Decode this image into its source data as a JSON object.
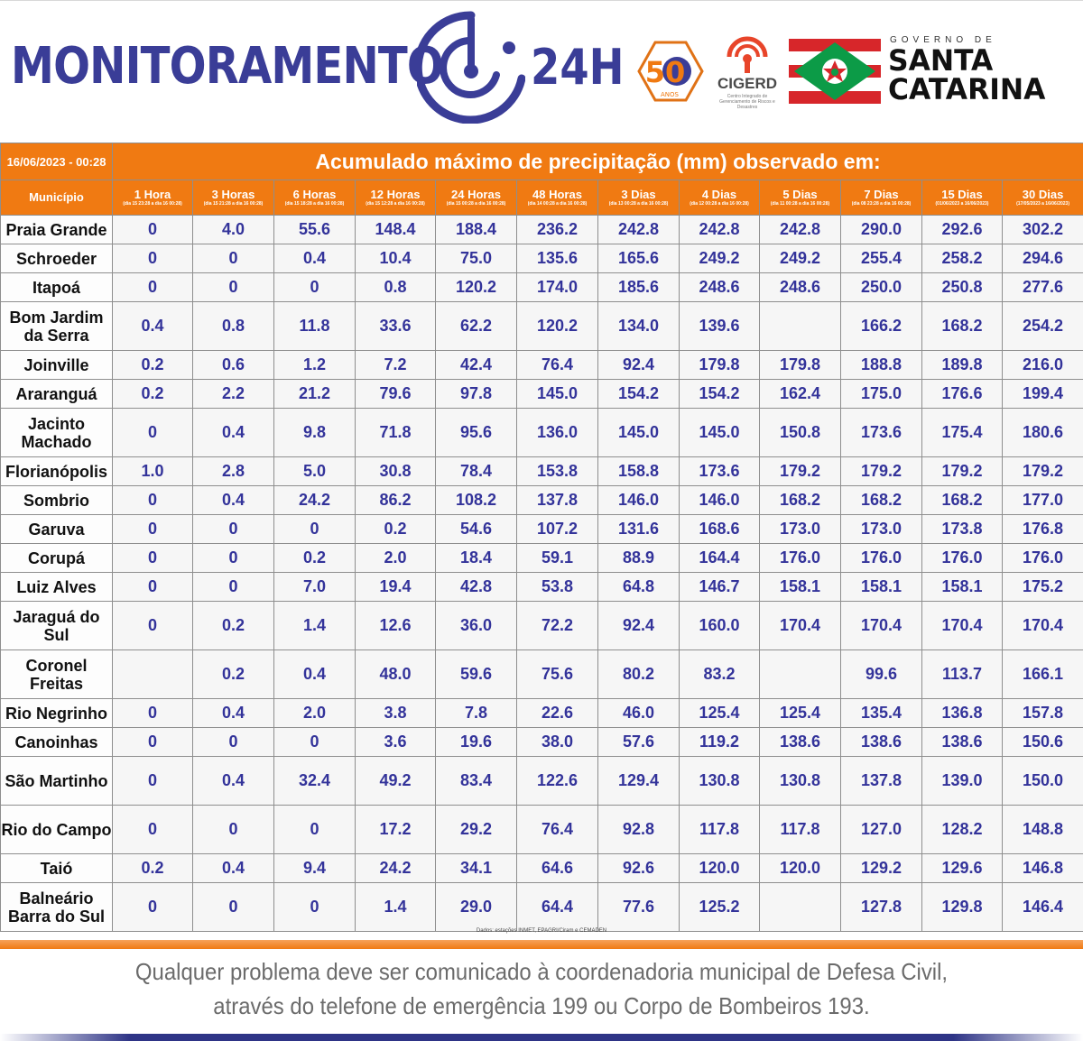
{
  "header": {
    "brand_left": "MONITORAMENTO",
    "brand_right": "24H",
    "anniversary_number": "50",
    "anniversary_word": "ANOS",
    "cigerd_name": "CIGERD",
    "cigerd_subtitle": "Centro Integrado de Gerenciamento de Riscos e Desastres",
    "gov_label": "GOVERNO DE",
    "state_line1": "SANTA",
    "state_line2": "CATARINA",
    "colors": {
      "brand_blue": "#3a3d97",
      "flag_red": "#d7262a",
      "flag_green": "#0c9b47",
      "accent_orange": "#f07a12"
    }
  },
  "table": {
    "date": "16/06/2023 - 00:28",
    "title": "Acumulado máximo de precipitação (mm) observado em:",
    "municipio_label": "Município",
    "periods": [
      {
        "label": "1 Hora",
        "range": "(dia 15 23:28 a dia 16 00:28)"
      },
      {
        "label": "3 Horas",
        "range": "(dia 15 21:28 a dia 16 00:28)"
      },
      {
        "label": "6 Horas",
        "range": "(dia 15 18:28 a dia 16 00:28)"
      },
      {
        "label": "12 Horas",
        "range": "(dia 15 12:28 a dia 16 00:28)"
      },
      {
        "label": "24 Horas",
        "range": "(dia 15 00:28 a dia 16 00:28)"
      },
      {
        "label": "48 Horas",
        "range": "(dia 14 00:28 a dia 16 00:28)"
      },
      {
        "label": "3 Dias",
        "range": "(dia 13 00:28 a dia 16 00:28)"
      },
      {
        "label": "4 Dias",
        "range": "(dia 12 00:28 a dia 16 00:28)"
      },
      {
        "label": "5 Dias",
        "range": "(dia 11 00:28 a dia 16 00:28)"
      },
      {
        "label": "7 Dias",
        "range": "(dia 08 23:28 a dia 16 00:28)"
      },
      {
        "label": "15 Dias",
        "range": "(01/06/2023 a 16/06/2023)"
      },
      {
        "label": "30 Dias",
        "range": "(17/05/2023 a 16/06/2023)"
      }
    ],
    "rows": [
      {
        "name": "Praia Grande",
        "values": [
          "0",
          "4.0",
          "55.6",
          "148.4",
          "188.4",
          "236.2",
          "242.8",
          "242.8",
          "242.8",
          "290.0",
          "292.6",
          "302.2"
        ]
      },
      {
        "name": "Schroeder",
        "values": [
          "0",
          "0",
          "0.4",
          "10.4",
          "75.0",
          "135.6",
          "165.6",
          "249.2",
          "249.2",
          "255.4",
          "258.2",
          "294.6"
        ]
      },
      {
        "name": "Itapoá",
        "values": [
          "0",
          "0",
          "0",
          "0.8",
          "120.2",
          "174.0",
          "185.6",
          "248.6",
          "248.6",
          "250.0",
          "250.8",
          "277.6"
        ]
      },
      {
        "name": "Bom Jardim da Serra",
        "values": [
          "0.4",
          "0.8",
          "11.8",
          "33.6",
          "62.2",
          "120.2",
          "134.0",
          "139.6",
          "",
          "166.2",
          "168.2",
          "254.2"
        ]
      },
      {
        "name": "Joinville",
        "values": [
          "0.2",
          "0.6",
          "1.2",
          "7.2",
          "42.4",
          "76.4",
          "92.4",
          "179.8",
          "179.8",
          "188.8",
          "189.8",
          "216.0"
        ]
      },
      {
        "name": "Araranguá",
        "values": [
          "0.2",
          "2.2",
          "21.2",
          "79.6",
          "97.8",
          "145.0",
          "154.2",
          "154.2",
          "162.4",
          "175.0",
          "176.6",
          "199.4"
        ]
      },
      {
        "name": "Jacinto Machado",
        "values": [
          "0",
          "0.4",
          "9.8",
          "71.8",
          "95.6",
          "136.0",
          "145.0",
          "145.0",
          "150.8",
          "173.6",
          "175.4",
          "180.6"
        ]
      },
      {
        "name": "Florianópolis",
        "values": [
          "1.0",
          "2.8",
          "5.0",
          "30.8",
          "78.4",
          "153.8",
          "158.8",
          "173.6",
          "179.2",
          "179.2",
          "179.2",
          "179.2"
        ]
      },
      {
        "name": "Sombrio",
        "values": [
          "0",
          "0.4",
          "24.2",
          "86.2",
          "108.2",
          "137.8",
          "146.0",
          "146.0",
          "168.2",
          "168.2",
          "168.2",
          "177.0"
        ]
      },
      {
        "name": "Garuva",
        "values": [
          "0",
          "0",
          "0",
          "0.2",
          "54.6",
          "107.2",
          "131.6",
          "168.6",
          "173.0",
          "173.0",
          "173.8",
          "176.8"
        ]
      },
      {
        "name": "Corupá",
        "values": [
          "0",
          "0",
          "0.2",
          "2.0",
          "18.4",
          "59.1",
          "88.9",
          "164.4",
          "176.0",
          "176.0",
          "176.0",
          "176.0"
        ]
      },
      {
        "name": "Luiz Alves",
        "values": [
          "0",
          "0",
          "7.0",
          "19.4",
          "42.8",
          "53.8",
          "64.8",
          "146.7",
          "158.1",
          "158.1",
          "158.1",
          "175.2"
        ]
      },
      {
        "name": "Jaraguá do Sul",
        "values": [
          "0",
          "0.2",
          "1.4",
          "12.6",
          "36.0",
          "72.2",
          "92.4",
          "160.0",
          "170.4",
          "170.4",
          "170.4",
          "170.4"
        ]
      },
      {
        "name": "Coronel Freitas",
        "values": [
          "",
          "0.2",
          "0.4",
          "48.0",
          "59.6",
          "75.6",
          "80.2",
          "83.2",
          "",
          "99.6",
          "113.7",
          "166.1"
        ]
      },
      {
        "name": "Rio Negrinho",
        "values": [
          "0",
          "0.4",
          "2.0",
          "3.8",
          "7.8",
          "22.6",
          "46.0",
          "125.4",
          "125.4",
          "135.4",
          "136.8",
          "157.8"
        ]
      },
      {
        "name": "Canoinhas",
        "values": [
          "0",
          "0",
          "0",
          "3.6",
          "19.6",
          "38.0",
          "57.6",
          "119.2",
          "138.6",
          "138.6",
          "138.6",
          "150.6"
        ]
      },
      {
        "name": "São Martinho",
        "values": [
          "0",
          "0.4",
          "32.4",
          "49.2",
          "83.4",
          "122.6",
          "129.4",
          "130.8",
          "130.8",
          "137.8",
          "139.0",
          "150.0"
        ]
      },
      {
        "name": "Rio do Campo",
        "values": [
          "0",
          "0",
          "0",
          "17.2",
          "29.2",
          "76.4",
          "92.8",
          "117.8",
          "117.8",
          "127.0",
          "128.2",
          "148.8"
        ]
      },
      {
        "name": "Taió",
        "values": [
          "0.2",
          "0.4",
          "9.4",
          "24.2",
          "34.1",
          "64.6",
          "92.6",
          "120.0",
          "120.0",
          "129.2",
          "129.6",
          "146.8"
        ]
      },
      {
        "name": "Balneário Barra do Sul",
        "values": [
          "0",
          "0",
          "0",
          "1.4",
          "29.0",
          "64.4",
          "77.6",
          "125.2",
          "",
          "127.8",
          "129.8",
          "146.4"
        ]
      }
    ],
    "source": "Dados: estações INMET, EPAGRI/Ciram e CEMADEN"
  },
  "footer": {
    "line1": "Qualquer problema deve ser comunicado à coordenadoria municipal de Defesa Civil,",
    "line2": "através do telefone de emergência 199 ou Corpo de Bombeiros 193."
  }
}
